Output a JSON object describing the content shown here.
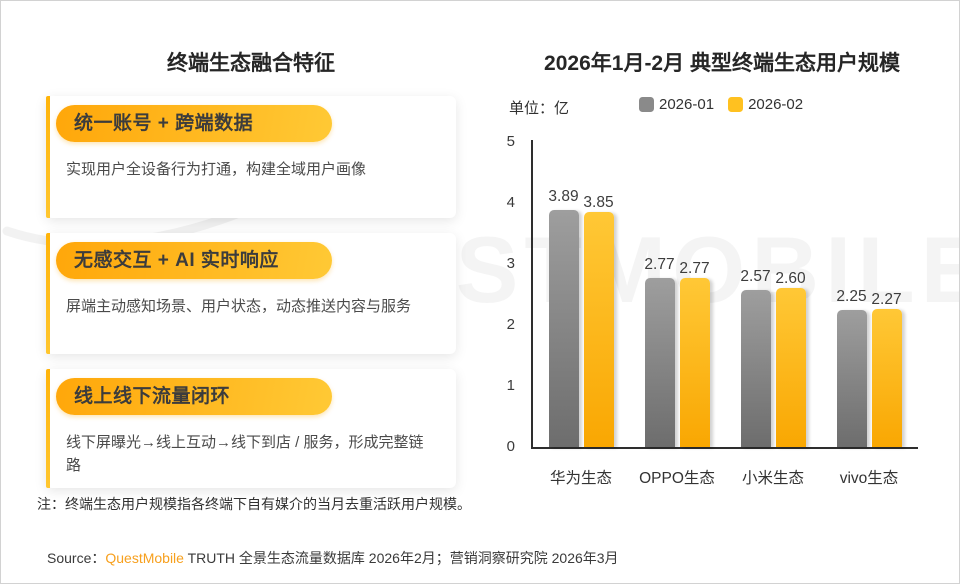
{
  "page": {
    "left": {
      "title": "终端生态融合特征",
      "cards": [
        {
          "pill": "统一账号 + 跨端数据",
          "desc": "实现用户全设备行为打通，构建全域用户画像"
        },
        {
          "pill": "无感交互 + AI 实时响应",
          "desc": "屏端主动感知场景、用户状态，动态推送内容与服务"
        },
        {
          "pill": "线上线下流量闭环",
          "desc": "线下屏曝光→线上互动→线下到店 / 服务，形成完整链路"
        }
      ]
    },
    "note": "注：终端生态用户规模指各终端下自有媒介的当月去重活跃用户规模。",
    "source": {
      "prefix": "Source：",
      "brand": "QuestMobile",
      "rest": " TRUTH 全景生态流量数据库 2026年2月；营销洞察研究院 2026年3月"
    },
    "watermark": "QUESTMOBILE",
    "colors": {
      "pill_gradient_from": "#ffa70a",
      "pill_gradient_to": "#ffc935",
      "accent_yellow": "#ffc120",
      "brand_orange": "#f7a01e"
    }
  },
  "chart_data": {
    "type": "bar",
    "title": "2026年1月-2月 典型终端生态用户规模",
    "unit_label": "单位：亿",
    "categories": [
      "华为生态",
      "OPPO生态",
      "小米生态",
      "vivo生态"
    ],
    "series": [
      {
        "name": "2026-01",
        "color": "#8a8a8a",
        "gradient": [
          "#9e9e9e",
          "#6d6d6d"
        ],
        "values": [
          3.89,
          2.77,
          2.57,
          2.25
        ]
      },
      {
        "name": "2026-02",
        "color": "#ffc120",
        "gradient": [
          "#ffc836",
          "#f9a702"
        ],
        "values": [
          3.85,
          2.77,
          2.6,
          2.27
        ]
      }
    ],
    "ylim": [
      0,
      5
    ],
    "yticks": [
      0,
      1,
      2,
      3,
      4,
      5
    ],
    "grid": false,
    "legend_position": "top",
    "value_labels": true
  }
}
